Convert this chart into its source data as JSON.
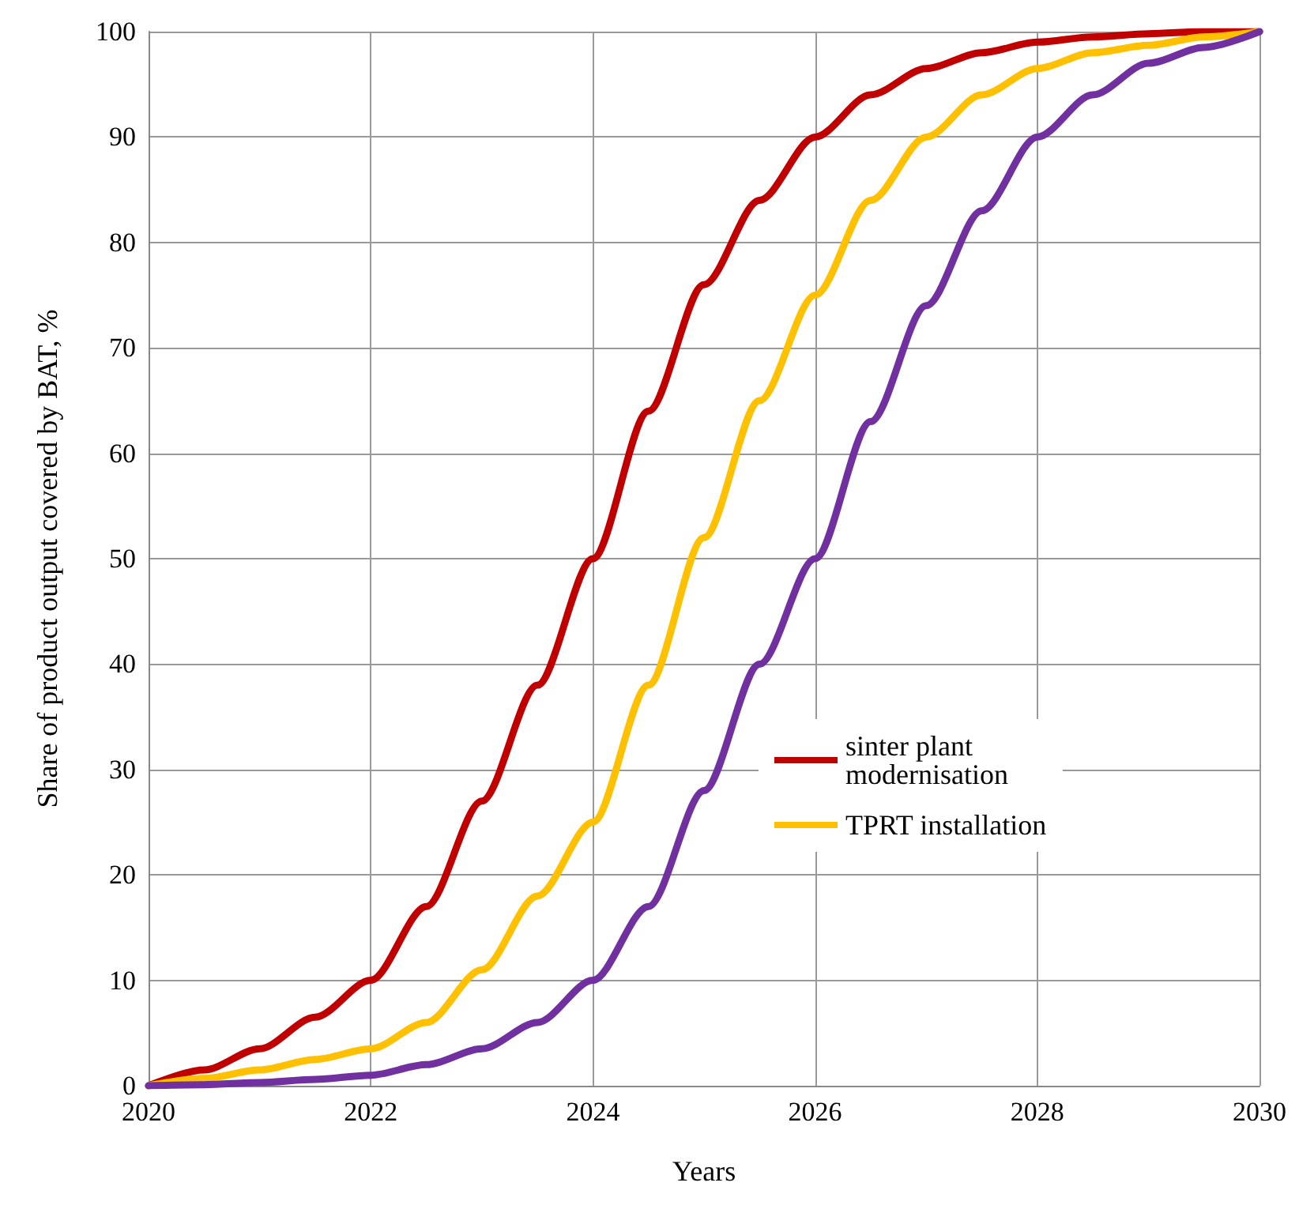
{
  "chart_data": {
    "type": "line",
    "xlabel": "Years",
    "ylabel": "Share of product output covered by BAT, %",
    "x": [
      2020,
      2020.5,
      2021,
      2021.5,
      2022,
      2022.5,
      2023,
      2023.5,
      2024,
      2024.5,
      2025,
      2025.5,
      2026,
      2026.5,
      2027,
      2027.5,
      2028,
      2028.5,
      2029,
      2029.5,
      2030
    ],
    "series": [
      {
        "name": "sinter plant modernisation",
        "color": "#c00000",
        "values": [
          0,
          1.5,
          3.5,
          6.5,
          10,
          17,
          27,
          38,
          50,
          64,
          76,
          84,
          90,
          94,
          96.5,
          98,
          99,
          99.5,
          99.8,
          100,
          100
        ]
      },
      {
        "name": "TPRT installation",
        "color": "#ffc000",
        "values": [
          0,
          0.7,
          1.5,
          2.5,
          3.5,
          6,
          11,
          18,
          25,
          38,
          52,
          65,
          75,
          84,
          90,
          94,
          96.5,
          98,
          98.7,
          99.5,
          100
        ]
      },
      {
        "color": "#7030a0",
        "values": [
          0,
          0.1,
          0.3,
          0.6,
          1,
          2,
          3.5,
          6,
          10,
          17,
          28,
          40,
          50,
          63,
          74,
          83,
          90,
          94,
          97,
          98.5,
          100
        ]
      }
    ],
    "xlim": [
      2020,
      2030
    ],
    "xticks": [
      2020,
      2022,
      2024,
      2026,
      2028,
      2030
    ],
    "ylim": [
      0,
      100
    ],
    "yticks": [
      0,
      10,
      20,
      30,
      40,
      50,
      60,
      70,
      80,
      90,
      100
    ],
    "grid": true,
    "legend": "right",
    "marker": "none",
    "line_style": "solid"
  }
}
